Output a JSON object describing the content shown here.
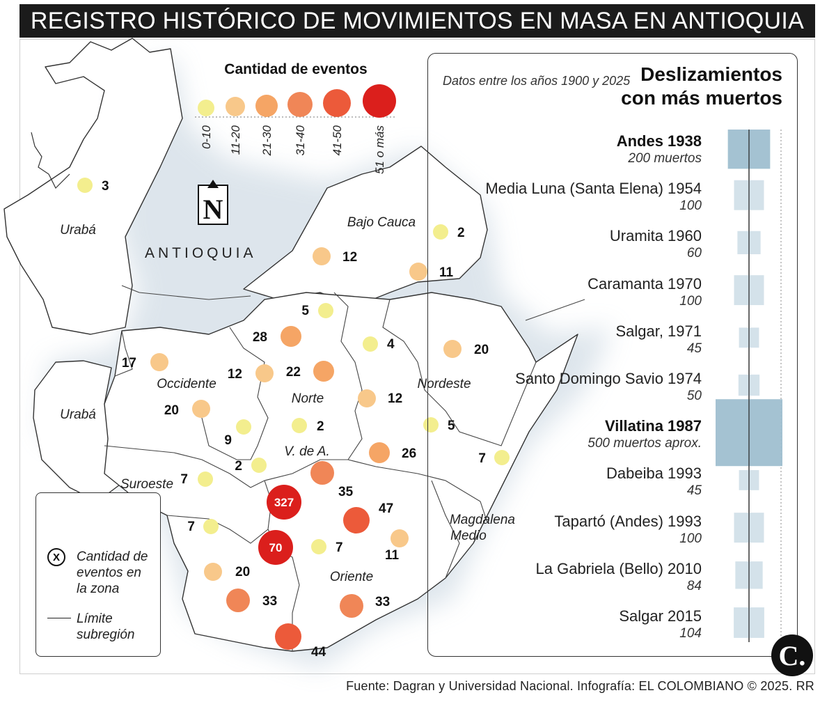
{
  "title": "REGISTRO HISTÓRICO DE MOVIMIENTOS EN MASA EN ANTIOQUIA",
  "map_label": "ANTIOQUIA",
  "north_label": "N",
  "scale": {
    "title": "Cantidad de eventos",
    "bins": [
      {
        "label": "0-10",
        "color": "#f3ee8e"
      },
      {
        "label": "11-20",
        "color": "#f8c88a"
      },
      {
        "label": "21-30",
        "color": "#f5a565"
      },
      {
        "label": "31-40",
        "color": "#f08657"
      },
      {
        "label": "41-50",
        "color": "#ec5a3a"
      },
      {
        "label": "51 o más",
        "color": "#db1f1c"
      }
    ]
  },
  "regions": [
    "Urabá",
    "Urabá",
    "Bajo Cauca",
    "Occidente",
    "Norte",
    "Nordeste",
    "V. de A.",
    "Suroeste",
    "Magdalena",
    "Medio",
    "Oriente"
  ],
  "points": [
    {
      "value": "3",
      "bin": 0
    },
    {
      "value": "2",
      "bin": 0
    },
    {
      "value": "12",
      "bin": 1
    },
    {
      "value": "11",
      "bin": 1
    },
    {
      "value": "5",
      "bin": 0
    },
    {
      "value": "28",
      "bin": 2
    },
    {
      "value": "4",
      "bin": 0
    },
    {
      "value": "20",
      "bin": 1
    },
    {
      "value": "17",
      "bin": 1
    },
    {
      "value": "12",
      "bin": 1
    },
    {
      "value": "22",
      "bin": 2
    },
    {
      "value": "12",
      "bin": 1
    },
    {
      "value": "20",
      "bin": 1
    },
    {
      "value": "9",
      "bin": 0
    },
    {
      "value": "2",
      "bin": 0
    },
    {
      "value": "5",
      "bin": 0
    },
    {
      "value": "2",
      "bin": 0
    },
    {
      "value": "26",
      "bin": 2
    },
    {
      "value": "7",
      "bin": 0
    },
    {
      "value": "7",
      "bin": 0
    },
    {
      "value": "35",
      "bin": 3
    },
    {
      "value": "327",
      "bin": 5
    },
    {
      "value": "47",
      "bin": 4
    },
    {
      "value": "7",
      "bin": 0
    },
    {
      "value": "70",
      "bin": 5
    },
    {
      "value": "7",
      "bin": 0
    },
    {
      "value": "11",
      "bin": 1
    },
    {
      "value": "20",
      "bin": 1
    },
    {
      "value": "33",
      "bin": 3
    },
    {
      "value": "33",
      "bin": 3
    },
    {
      "value": "44",
      "bin": 4
    }
  ],
  "legend": {
    "marker": "X",
    "marker_text": "Cantidad de eventos en la zona",
    "line_text": "Límite subregión"
  },
  "panel": {
    "note": "Datos entre los años 1900 y 2025",
    "title_line1": "Deslizamientos",
    "title_line2": "con más muertos",
    "events": [
      {
        "name": "Andes 1938",
        "deaths_label": "200 muertos",
        "deaths": 200,
        "bold": true
      },
      {
        "name": "Media Luna (Santa Elena) 1954",
        "deaths_label": "100",
        "deaths": 100,
        "bold": false
      },
      {
        "name": "Uramita 1960",
        "deaths_label": "60",
        "deaths": 60,
        "bold": false
      },
      {
        "name": "Caramanta 1970",
        "deaths_label": "100",
        "deaths": 100,
        "bold": false
      },
      {
        "name": "Salgar, 1971",
        "deaths_label": "45",
        "deaths": 45,
        "bold": false
      },
      {
        "name": "Santo Domingo Savio 1974",
        "deaths_label": "50",
        "deaths": 50,
        "bold": false
      },
      {
        "name": "Villatina 1987",
        "deaths_label": "500 muertos aprox.",
        "deaths": 500,
        "bold": true
      },
      {
        "name": "Dabeiba 1993",
        "deaths_label": "45",
        "deaths": 45,
        "bold": false
      },
      {
        "name": "Tapartó (Andes) 1993",
        "deaths_label": "100",
        "deaths": 100,
        "bold": false
      },
      {
        "name": "La Gabriela (Bello) 2010",
        "deaths_label": "84",
        "deaths": 84,
        "bold": false
      },
      {
        "name": "Salgar 2015",
        "deaths_label": "104",
        "deaths": 104,
        "bold": false
      }
    ]
  },
  "source": "Fuente: Dagran y Universidad Nacional. Infografía: EL COLOMBIANO © 2025. RR",
  "logo": "C."
}
